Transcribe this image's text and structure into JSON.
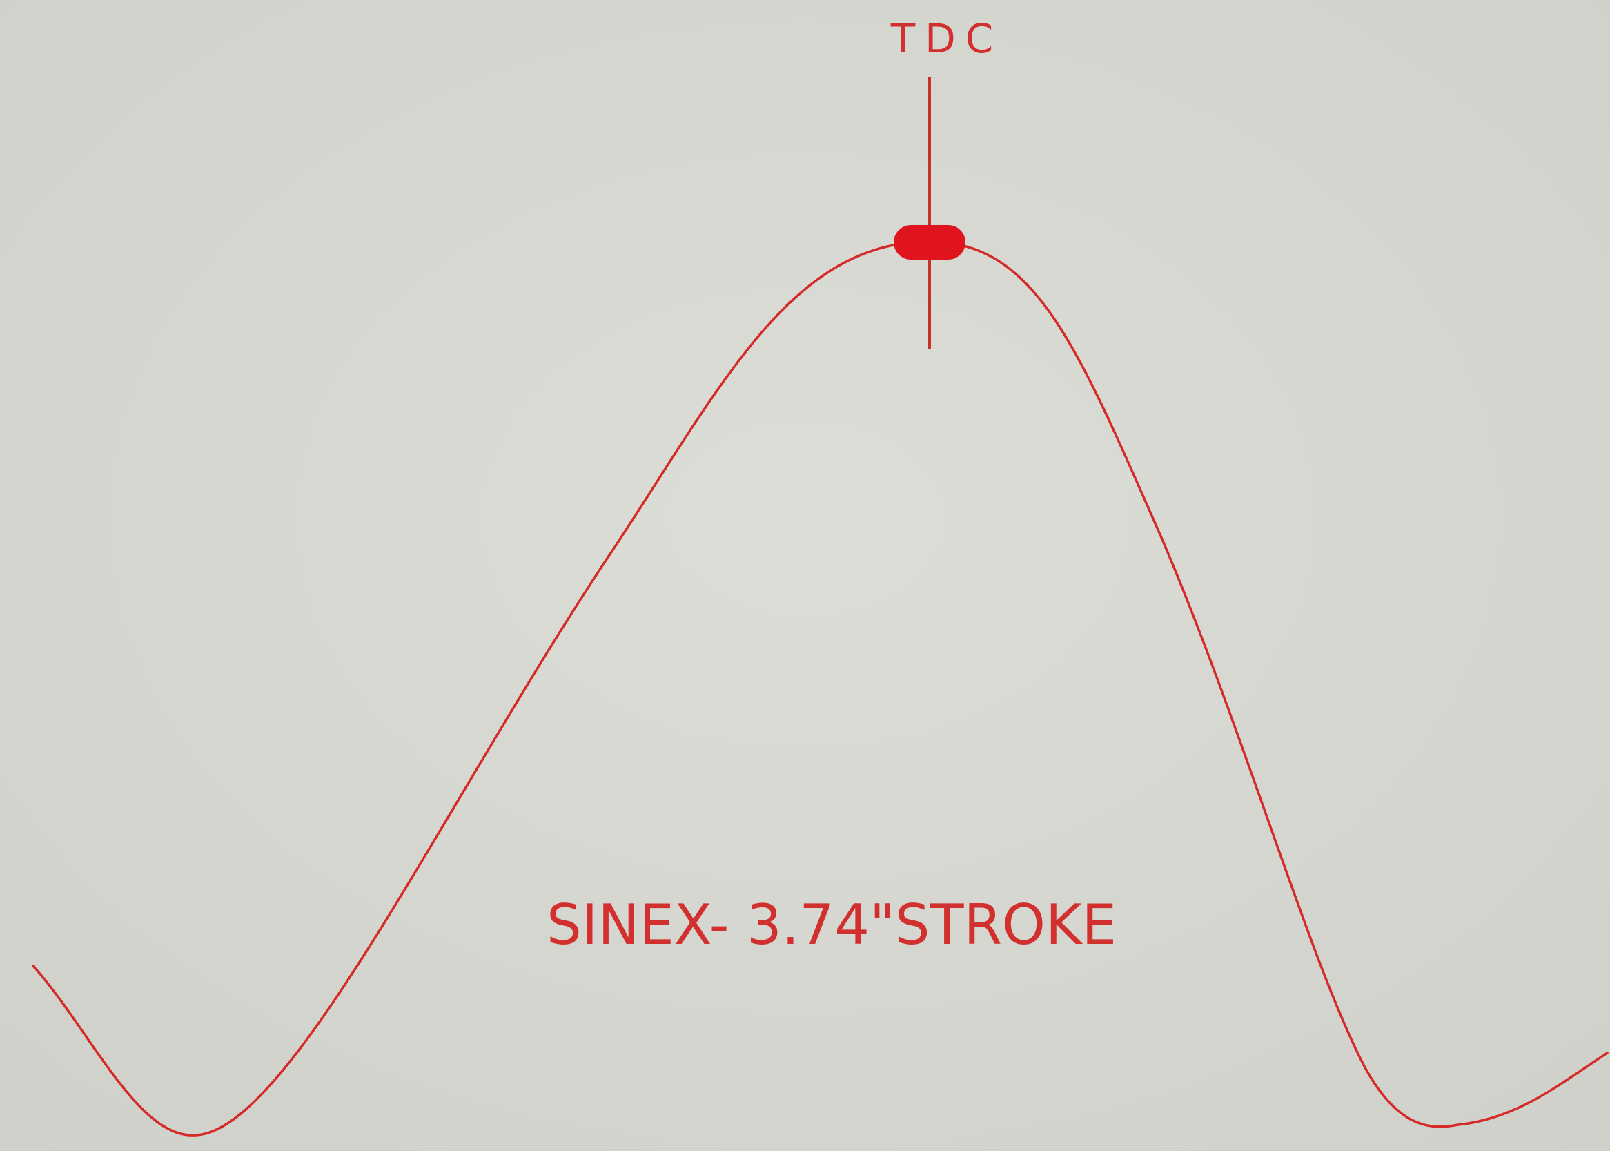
{
  "labels": {
    "top": "TDC",
    "caption": "SINEX- 3.74\"STROKE"
  }
}
